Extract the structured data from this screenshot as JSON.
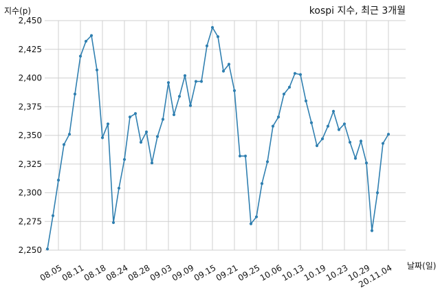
{
  "chart_data": {
    "type": "line",
    "title": "kospi 지수, 최근 3개월",
    "ylabel": "지수(p)",
    "xlabel": "날짜(일)",
    "ylim": [
      2250,
      2450
    ],
    "yticks": [
      2250,
      2275,
      2300,
      2325,
      2350,
      2375,
      2400,
      2425,
      2450
    ],
    "ytick_labels": [
      "2,250",
      "2,275",
      "2,300",
      "2,325",
      "2,350",
      "2,375",
      "2,400",
      "2,425",
      "2,450"
    ],
    "xtick_labels": [
      "08.05",
      "08.11",
      "08.18",
      "08.24",
      "08.28",
      "09.03",
      "09.09",
      "09.15",
      "09.21",
      "09.25",
      "10.06",
      "10.13",
      "10.19",
      "10.23",
      "10.29",
      "20.11.04"
    ],
    "xtick_indices": [
      2,
      6,
      10,
      14,
      18,
      22,
      26,
      30,
      34,
      38,
      42,
      46,
      50,
      54,
      58,
      62
    ],
    "grid": true,
    "series": [
      {
        "color": "#2f7fb0",
        "values": [
          2251,
          2280,
          2311,
          2342,
          2351,
          2386,
          2419,
          2432,
          2437,
          2407,
          2348,
          2360,
          2274,
          2304,
          2329,
          2366,
          2369,
          2344,
          2353,
          2326,
          2349,
          2364,
          2396,
          2368,
          2384,
          2402,
          2376,
          2397,
          2397,
          2428,
          2444,
          2436,
          2406,
          2412,
          2389,
          2332,
          2332,
          2273,
          2279,
          2308,
          2327,
          2358,
          2366,
          2386,
          2392,
          2404,
          2403,
          2380,
          2361,
          2341,
          2347,
          2358,
          2371,
          2355,
          2360,
          2344,
          2330,
          2345,
          2326,
          2267,
          2300,
          2343,
          2351
        ]
      }
    ]
  }
}
